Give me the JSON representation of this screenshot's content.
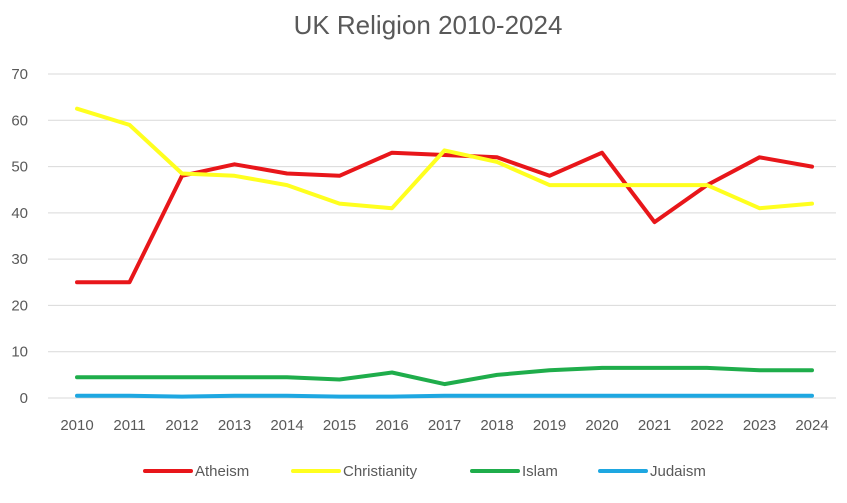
{
  "chart_data": {
    "type": "line",
    "title": "UK Religion 2010-2024",
    "xlabel": "",
    "ylabel": "",
    "ylim": [
      0,
      70
    ],
    "yticks": [
      "0",
      "10",
      "20",
      "30",
      "40",
      "50",
      "60",
      "70"
    ],
    "grid": true,
    "legend_position": "bottom",
    "categories": [
      "2010",
      "2011",
      "2012",
      "2013",
      "2014",
      "2015",
      "2016",
      "2017",
      "2018",
      "2019",
      "2020",
      "2021",
      "2022",
      "2023",
      "2024"
    ],
    "series": [
      {
        "name": "Atheism",
        "color": "#e8161a",
        "values": [
          25,
          25,
          48,
          50.5,
          48.5,
          48,
          53,
          52.5,
          52,
          48,
          53,
          38,
          46,
          52,
          50
        ]
      },
      {
        "name": "Christianity",
        "color": "#ffff1f",
        "values": [
          62.5,
          59,
          48.5,
          48,
          46,
          42,
          41,
          53.5,
          51,
          46,
          46,
          46,
          46,
          41,
          42
        ]
      },
      {
        "name": "Islam",
        "color": "#1fad4b",
        "values": [
          4.5,
          4.5,
          4.5,
          4.5,
          4.5,
          4,
          5.5,
          3,
          5,
          6,
          6.5,
          6.5,
          6.5,
          6,
          6
        ]
      },
      {
        "name": "Judaism",
        "color": "#1ea7e1",
        "values": [
          0.5,
          0.5,
          0.3,
          0.5,
          0.5,
          0.3,
          0.3,
          0.5,
          0.5,
          0.5,
          0.5,
          0.5,
          0.5,
          0.5,
          0.5
        ]
      }
    ]
  }
}
